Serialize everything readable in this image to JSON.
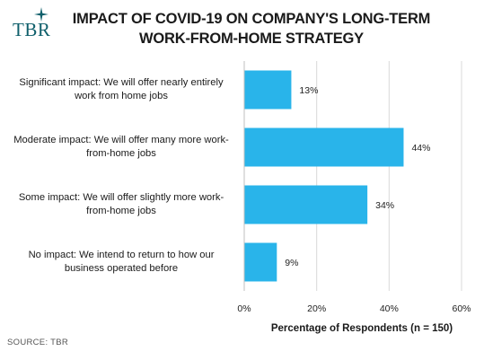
{
  "logo": {
    "text": "TBR"
  },
  "title": {
    "line1": "IMPACT OF COVID-19 ON COMPANY'S LONG-TERM",
    "line2": "WORK-FROM-HOME STRATEGY"
  },
  "source": "SOURCE: TBR",
  "colors": {
    "bar": "#29b4ea",
    "logo": "#0f5f6b",
    "grid": "#d9d9d9"
  },
  "chart_data": {
    "type": "bar",
    "orientation": "horizontal",
    "title": "IMPACT OF COVID-19 ON COMPANY'S LONG-TERM WORK-FROM-HOME STRATEGY",
    "categories": [
      [
        "Significant impact: We will offer nearly entirely",
        "work from home jobs"
      ],
      [
        "Moderate impact: We will offer many more work-",
        "from-home jobs"
      ],
      [
        "Some impact: We will offer slightly more work-",
        "from-home jobs"
      ],
      [
        "No impact: We intend to return to how our",
        "business operated before"
      ]
    ],
    "values": [
      13,
      44,
      34,
      9
    ],
    "data_labels": [
      "13%",
      "44%",
      "34%",
      "9%"
    ],
    "xlabel": "Percentage of Respondents (n = 150)",
    "xlim": [
      0,
      60
    ],
    "xticks": [
      0,
      20,
      40,
      60
    ],
    "xtick_labels": [
      "0%",
      "20%",
      "40%",
      "60%"
    ],
    "grid": "vertical"
  }
}
